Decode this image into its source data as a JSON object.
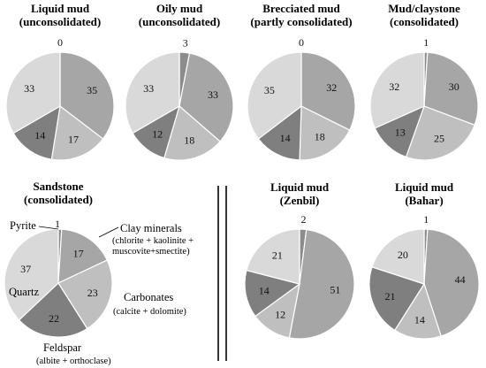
{
  "colors": {
    "clay": "#a6a6a6",
    "carbonates": "#bfbfbf",
    "feldspar": "#7f7f7f",
    "quartz": "#d9d9d9",
    "pyrite": "#8c8c8c",
    "slice_border": "#ffffff"
  },
  "chart_data": [
    {
      "type": "pie",
      "title": [
        "Liquid mud",
        "(unconsolidated)"
      ],
      "categories": [
        "Pyrite",
        "Clay minerals",
        "Carbonates",
        "Feldspar",
        "Quartz"
      ],
      "values": [
        0,
        35,
        17,
        14,
        33
      ]
    },
    {
      "type": "pie",
      "title": [
        "Oily mud",
        "(unconsolidated)"
      ],
      "categories": [
        "Pyrite",
        "Clay minerals",
        "Carbonates",
        "Feldspar",
        "Quartz"
      ],
      "values": [
        3,
        33,
        18,
        12,
        33
      ]
    },
    {
      "type": "pie",
      "title": [
        "Brecciated mud",
        "(partly consolidated)"
      ],
      "categories": [
        "Pyrite",
        "Clay minerals",
        "Carbonates",
        "Feldspar",
        "Quartz"
      ],
      "values": [
        0,
        32,
        18,
        14,
        35
      ]
    },
    {
      "type": "pie",
      "title": [
        "Mud/claystone",
        "(consolidated)"
      ],
      "categories": [
        "Pyrite",
        "Clay minerals",
        "Carbonates",
        "Feldspar",
        "Quartz"
      ],
      "values": [
        1,
        30,
        25,
        13,
        32
      ]
    },
    {
      "type": "pie",
      "title": [
        "Sandstone",
        "(consolidated)"
      ],
      "categories": [
        "Pyrite",
        "Clay minerals",
        "Carbonates",
        "Feldspar",
        "Quartz"
      ],
      "values": [
        1,
        17,
        23,
        22,
        37
      ],
      "annotations": {
        "pyrite": "Pyrite",
        "clay": [
          "Clay minerals",
          "(chlorite + kaolinite +",
          "muscovite+smectite)"
        ],
        "carbonates": [
          "Carbonates",
          "(calcite + dolomite)"
        ],
        "feldspar": [
          "Feldspar",
          "(albite + orthoclase)"
        ],
        "quartz": "Quartz"
      }
    },
    {
      "type": "pie",
      "title": [
        "Liquid mud",
        "(Zenbil)"
      ],
      "categories": [
        "Pyrite",
        "Clay minerals",
        "Carbonates",
        "Feldspar",
        "Quartz"
      ],
      "values": [
        2,
        51,
        12,
        14,
        21
      ]
    },
    {
      "type": "pie",
      "title": [
        "Liquid mud",
        "(Bahar)"
      ],
      "categories": [
        "Pyrite",
        "Clay minerals",
        "Carbonates",
        "Feldspar",
        "Quartz"
      ],
      "values": [
        1,
        44,
        14,
        21,
        20
      ]
    }
  ]
}
